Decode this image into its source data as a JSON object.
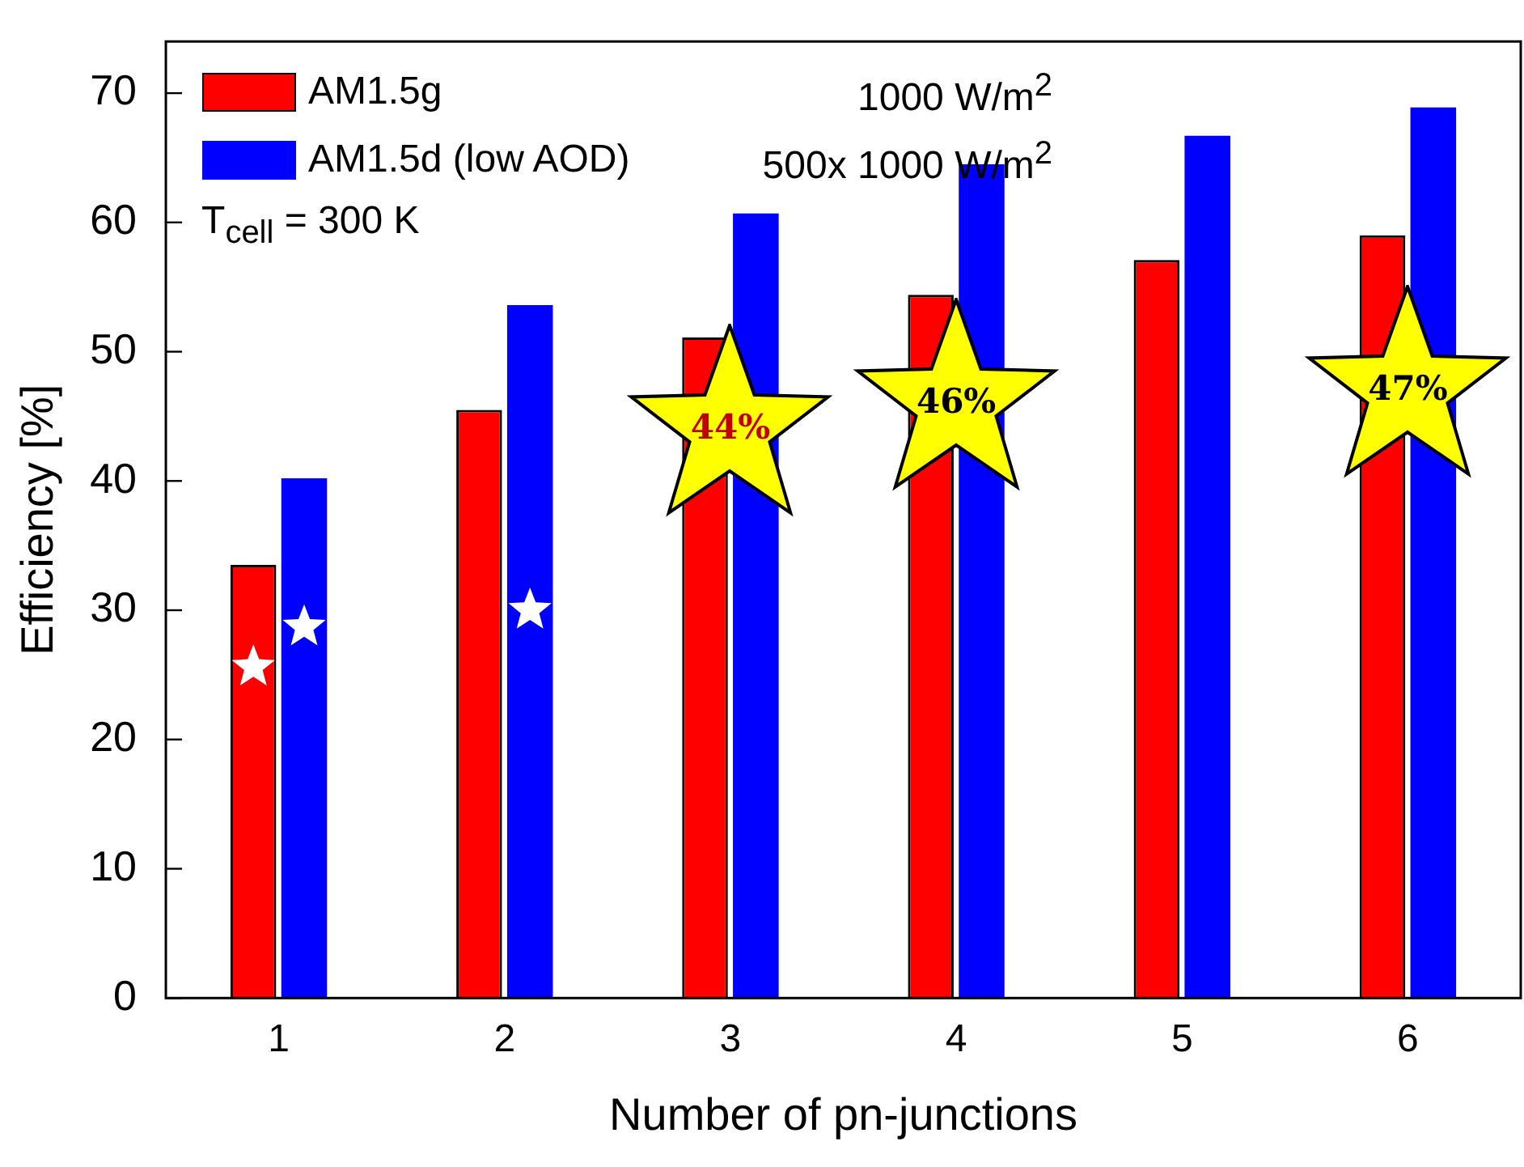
{
  "chart_data": {
    "type": "bar",
    "xlabel": "Number of pn-junctions",
    "ylabel": "Efficiency [%]",
    "categories": [
      "1",
      "2",
      "3",
      "4",
      "5",
      "6"
    ],
    "series": [
      {
        "name": "AM1.5g",
        "color": "#ff0000",
        "values": [
          33.5,
          45.5,
          51.1,
          54.4,
          57.1,
          59.0
        ]
      },
      {
        "name": "AM1.5d (low AOD)",
        "color": "#0000ff",
        "values": [
          40.2,
          53.6,
          60.7,
          64.5,
          66.7,
          68.9
        ]
      },
      {
        "type": "scatter",
        "color": "#ffffff",
        "x": [
          "1"
        ],
        "values": [
          25.6
        ]
      },
      {
        "type": "scatter",
        "color": "#ffffff",
        "x": [
          "1",
          "2"
        ],
        "values": [
          28.7,
          30.0
        ]
      }
    ],
    "marker": "star",
    "ylim": [
      0,
      74
    ],
    "yticks": [
      0,
      10,
      20,
      30,
      40,
      50,
      60,
      70
    ],
    "grid": false,
    "legend": "top left",
    "annotations": [
      "1000 W/m$^{2}$",
      "500x 1000 W/m$^{2}$",
      "T$_{cell}$ = 300 K",
      {
        "text": "44%",
        "x": "3",
        "y": 44
      },
      {
        "text": "46%",
        "x": "4",
        "y": 46
      },
      {
        "text": "47%",
        "x": "6",
        "y": 47
      }
    ]
  }
}
